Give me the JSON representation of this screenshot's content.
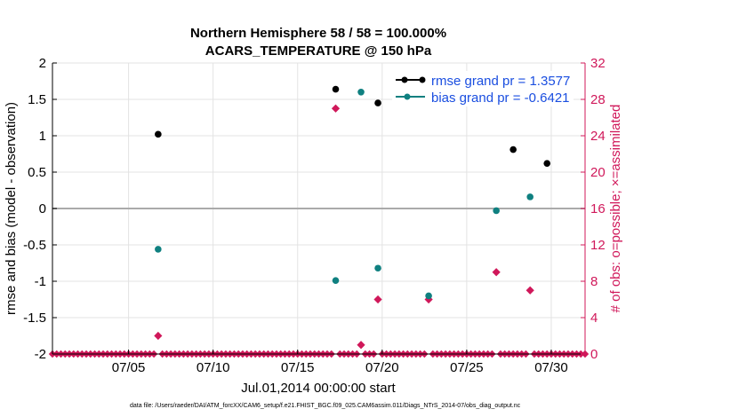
{
  "chart_data": {
    "type": "scatter",
    "title": "Northern Hemisphere 58 / 58 = 100.000%",
    "subtitle": "ACARS_TEMPERATURE @ 150 hPa",
    "xlabel": "Jul.01,2014 00:00:00 start",
    "ylabel": "rmse and bias (model - observation)",
    "y2label": "# of obs: o=possible; ×=assimilated",
    "footer": "data file: /Users/raeder/DAI/ATM_forcXX/CAM6_setup/f.e21.FHIST_BGC.f09_025.CAM6assim.011/Diags_NTrS_2014-07/obs_diag_output.nc",
    "xlim": [
      0.5,
      32.0
    ],
    "ylim": [
      -2,
      2
    ],
    "y2lim": [
      0,
      32
    ],
    "x_ticks": [
      5,
      10,
      15,
      20,
      25,
      30
    ],
    "x_tick_labels": [
      "07/05",
      "07/10",
      "07/15",
      "07/20",
      "07/25",
      "07/30"
    ],
    "y_ticks": [
      -2,
      -1.5,
      -1,
      -0.5,
      0,
      0.5,
      1,
      1.5,
      2
    ],
    "y_tick_labels": [
      "-2",
      "-1.5",
      "-1",
      "-0.5",
      "0",
      "0.5",
      "1",
      "1.5",
      "2"
    ],
    "y2_ticks": [
      0,
      4,
      8,
      12,
      16,
      20,
      24,
      28,
      32
    ],
    "y2_tick_labels": [
      "0",
      "4",
      "8",
      "12",
      "16",
      "20",
      "24",
      "28",
      "32"
    ],
    "grid": true,
    "colors": {
      "rmse": "#000000",
      "bias": "#0f8080",
      "obs": "#d0185a",
      "zero_line": "#aaaaaa"
    },
    "series": [
      {
        "name": "rmse grand pr = 1.3577",
        "axis": "left",
        "marker": "circle",
        "x": [
          6.75,
          17.25,
          19.75,
          27.75,
          29.75
        ],
        "values": [
          1.02,
          1.64,
          1.45,
          0.81,
          0.62
        ]
      },
      {
        "name": "bias grand pr = -0.6421",
        "axis": "left",
        "marker": "circle",
        "x": [
          6.75,
          17.25,
          18.75,
          19.75,
          22.75,
          26.75,
          28.75
        ],
        "values": [
          -0.56,
          -0.99,
          1.6,
          -0.82,
          -1.2,
          -0.03,
          0.16
        ]
      },
      {
        "name": "obs",
        "axis": "right",
        "marker": "diamond",
        "x": [
          6.75,
          17.25,
          18.75,
          19.75,
          22.75,
          26.75,
          28.75
        ],
        "values": [
          2,
          27,
          1,
          6,
          6,
          9,
          7
        ]
      }
    ],
    "zero_obs_step": 0.25,
    "legend_position": "top-right"
  }
}
